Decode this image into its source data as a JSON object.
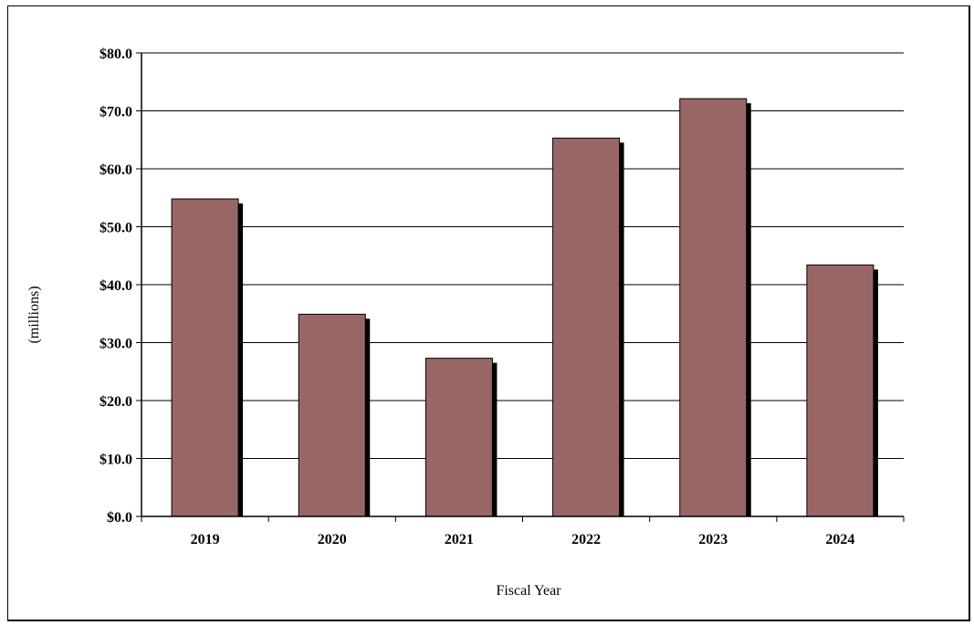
{
  "chart_data": {
    "type": "bar",
    "categories": [
      "2019",
      "2020",
      "2021",
      "2022",
      "2023",
      "2024"
    ],
    "values": [
      54.8,
      34.9,
      27.3,
      65.3,
      72.1,
      43.4
    ],
    "title": "",
    "xlabel": "Fiscal Year",
    "ylabel": "(millions)",
    "ylim": [
      0,
      80
    ],
    "yticks": [
      0,
      10,
      20,
      30,
      40,
      50,
      60,
      70,
      80
    ],
    "ytick_labels": [
      "$0.0",
      "$10.0",
      "$20.0",
      "$30.0",
      "$40.0",
      "$50.0",
      "$60.0",
      "$70.0",
      "$80.0"
    ],
    "grid": true,
    "legend": "none",
    "bar_color": "#996666",
    "shadow_color": "#000000"
  }
}
